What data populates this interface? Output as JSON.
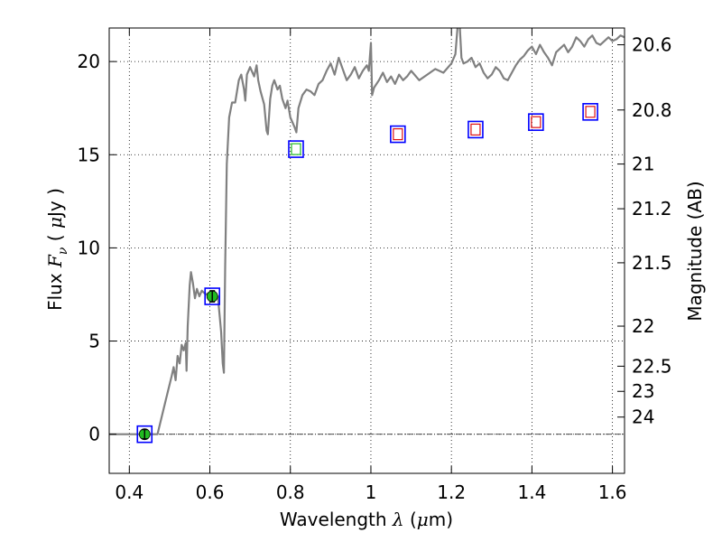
{
  "chart_data": {
    "type": "line",
    "xlabel": "Wavelength  λ (μm)",
    "ylabel": "Flux  Fν  ( μJy )",
    "y2label": "Magnitude (AB)",
    "xlim": [
      0.35,
      1.63
    ],
    "ylim": [
      -2.1,
      21.8
    ],
    "x_ticks": [
      0.4,
      0.6,
      0.8,
      1.0,
      1.2,
      1.4,
      1.6
    ],
    "x_tick_labels": [
      "0.4",
      "0.6",
      "0.8",
      "1",
      "1.2",
      "1.4",
      "1.6"
    ],
    "y_ticks": [
      0,
      5,
      10,
      15,
      20
    ],
    "y_tick_labels": [
      "0",
      "5",
      "10",
      "15",
      "20"
    ],
    "y2_ticks": [
      {
        "label": "20.6",
        "flux": 20.9
      },
      {
        "label": "20.8",
        "flux": 17.4
      },
      {
        "label": "21",
        "flux": 14.5
      },
      {
        "label": "21.2",
        "flux": 12.1
      },
      {
        "label": "21.5",
        "flux": 9.2
      },
      {
        "label": "22",
        "flux": 5.8
      },
      {
        "label": "22.5",
        "flux": 3.65
      },
      {
        "label": "23",
        "flux": 2.3
      },
      {
        "label": "24",
        "flux": 0.92
      }
    ],
    "grid": true,
    "zero_line": true,
    "series": [
      {
        "kind": "model-spectrum",
        "color": "#808080",
        "points": [
          [
            0.35,
            0.0
          ],
          [
            0.46,
            0.0
          ],
          [
            0.47,
            0.0
          ],
          [
            0.49,
            1.8
          ],
          [
            0.505,
            3.1
          ],
          [
            0.51,
            3.6
          ],
          [
            0.515,
            2.9
          ],
          [
            0.52,
            4.2
          ],
          [
            0.525,
            3.8
          ],
          [
            0.53,
            4.8
          ],
          [
            0.535,
            4.5
          ],
          [
            0.54,
            4.9
          ],
          [
            0.542,
            3.4
          ],
          [
            0.545,
            5.8
          ],
          [
            0.55,
            8.0
          ],
          [
            0.553,
            8.7
          ],
          [
            0.558,
            8.1
          ],
          [
            0.563,
            7.3
          ],
          [
            0.568,
            7.8
          ],
          [
            0.574,
            7.4
          ],
          [
            0.58,
            7.7
          ],
          [
            0.59,
            7.5
          ],
          [
            0.6,
            7.6
          ],
          [
            0.62,
            7.4
          ],
          [
            0.628,
            5.5
          ],
          [
            0.632,
            3.8
          ],
          [
            0.635,
            3.3
          ],
          [
            0.638,
            9.0
          ],
          [
            0.642,
            14.5
          ],
          [
            0.648,
            17.0
          ],
          [
            0.655,
            17.8
          ],
          [
            0.663,
            17.8
          ],
          [
            0.672,
            19.0
          ],
          [
            0.678,
            19.3
          ],
          [
            0.685,
            18.5
          ],
          [
            0.688,
            17.9
          ],
          [
            0.692,
            19.3
          ],
          [
            0.7,
            19.7
          ],
          [
            0.71,
            19.2
          ],
          [
            0.716,
            19.8
          ],
          [
            0.72,
            19.0
          ],
          [
            0.726,
            18.4
          ],
          [
            0.735,
            17.7
          ],
          [
            0.741,
            16.3
          ],
          [
            0.744,
            16.1
          ],
          [
            0.75,
            18.0
          ],
          [
            0.755,
            18.7
          ],
          [
            0.76,
            19.0
          ],
          [
            0.768,
            18.5
          ],
          [
            0.774,
            18.7
          ],
          [
            0.78,
            18.0
          ],
          [
            0.788,
            17.5
          ],
          [
            0.793,
            17.9
          ],
          [
            0.8,
            17.0
          ],
          [
            0.81,
            16.5
          ],
          [
            0.815,
            16.2
          ],
          [
            0.82,
            17.5
          ],
          [
            0.83,
            18.2
          ],
          [
            0.84,
            18.5
          ],
          [
            0.85,
            18.4
          ],
          [
            0.86,
            18.2
          ],
          [
            0.87,
            18.8
          ],
          [
            0.88,
            19.0
          ],
          [
            0.89,
            19.5
          ],
          [
            0.9,
            19.9
          ],
          [
            0.91,
            19.3
          ],
          [
            0.92,
            20.2
          ],
          [
            0.93,
            19.6
          ],
          [
            0.94,
            19.0
          ],
          [
            0.95,
            19.3
          ],
          [
            0.96,
            19.7
          ],
          [
            0.97,
            19.1
          ],
          [
            0.98,
            19.5
          ],
          [
            0.99,
            19.8
          ],
          [
            0.995,
            19.5
          ],
          [
            1.0,
            21.0
          ],
          [
            1.003,
            18.2
          ],
          [
            1.008,
            18.6
          ],
          [
            1.02,
            19.0
          ],
          [
            1.03,
            19.4
          ],
          [
            1.04,
            18.9
          ],
          [
            1.05,
            19.2
          ],
          [
            1.06,
            18.8
          ],
          [
            1.07,
            19.3
          ],
          [
            1.08,
            19.0
          ],
          [
            1.09,
            19.2
          ],
          [
            1.1,
            19.5
          ],
          [
            1.12,
            19.0
          ],
          [
            1.14,
            19.3
          ],
          [
            1.16,
            19.6
          ],
          [
            1.18,
            19.4
          ],
          [
            1.2,
            19.9
          ],
          [
            1.21,
            20.4
          ],
          [
            1.215,
            21.8
          ],
          [
            1.22,
            22.2
          ],
          [
            1.225,
            20.2
          ],
          [
            1.23,
            19.9
          ],
          [
            1.24,
            20.0
          ],
          [
            1.25,
            20.2
          ],
          [
            1.26,
            19.7
          ],
          [
            1.27,
            19.9
          ],
          [
            1.28,
            19.4
          ],
          [
            1.29,
            19.1
          ],
          [
            1.3,
            19.3
          ],
          [
            1.31,
            19.7
          ],
          [
            1.32,
            19.5
          ],
          [
            1.33,
            19.1
          ],
          [
            1.34,
            19.0
          ],
          [
            1.35,
            19.4
          ],
          [
            1.36,
            19.8
          ],
          [
            1.37,
            20.1
          ],
          [
            1.38,
            20.3
          ],
          [
            1.39,
            20.6
          ],
          [
            1.4,
            20.8
          ],
          [
            1.41,
            20.4
          ],
          [
            1.42,
            20.9
          ],
          [
            1.43,
            20.5
          ],
          [
            1.44,
            20.2
          ],
          [
            1.45,
            19.8
          ],
          [
            1.46,
            20.5
          ],
          [
            1.47,
            20.7
          ],
          [
            1.48,
            20.9
          ],
          [
            1.49,
            20.5
          ],
          [
            1.5,
            20.8
          ],
          [
            1.51,
            21.3
          ],
          [
            1.52,
            21.1
          ],
          [
            1.53,
            20.8
          ],
          [
            1.54,
            21.2
          ],
          [
            1.55,
            21.4
          ],
          [
            1.56,
            21.0
          ],
          [
            1.57,
            20.9
          ],
          [
            1.58,
            21.1
          ],
          [
            1.59,
            21.3
          ],
          [
            1.6,
            21.1
          ],
          [
            1.61,
            21.2
          ],
          [
            1.62,
            21.4
          ],
          [
            1.63,
            21.3
          ]
        ]
      },
      {
        "kind": "observed-photometry",
        "color": "#22bb22",
        "points": [
          {
            "x": 0.438,
            "y": 0.0,
            "err": 0.25
          },
          {
            "x": 0.606,
            "y": 7.4,
            "err": 0.3
          }
        ]
      },
      {
        "kind": "model-photometry",
        "color": "#0000ff",
        "points": [
          {
            "x": 0.438,
            "y": 0.0
          },
          {
            "x": 0.606,
            "y": 7.4
          },
          {
            "x": 0.814,
            "y": 15.3
          },
          {
            "x": 1.067,
            "y": 16.1
          },
          {
            "x": 1.26,
            "y": 16.35
          },
          {
            "x": 1.41,
            "y": 16.75
          },
          {
            "x": 1.545,
            "y": 17.3
          }
        ]
      },
      {
        "kind": "inner-squares",
        "points": [
          {
            "x": 0.814,
            "y": 15.3,
            "color": "#22bb22"
          },
          {
            "x": 1.067,
            "y": 16.1,
            "color": "#dd1111"
          },
          {
            "x": 1.26,
            "y": 16.35,
            "color": "#dd1111"
          },
          {
            "x": 1.41,
            "y": 16.75,
            "color": "#dd1111"
          },
          {
            "x": 1.545,
            "y": 17.3,
            "color": "#dd1111"
          }
        ]
      }
    ]
  },
  "ylabel_parts": {
    "pre": "Flux  ",
    "var": "F",
    "sub": "ν",
    "mid": "  ( ",
    "unit_var": "μ",
    "unit": "Jy )"
  },
  "xlabel_parts": {
    "pre": "Wavelength  ",
    "var": "λ",
    "mid": " (",
    "unit_var": "μ",
    "unit": "m)"
  },
  "y2label": "Magnitude (AB)"
}
